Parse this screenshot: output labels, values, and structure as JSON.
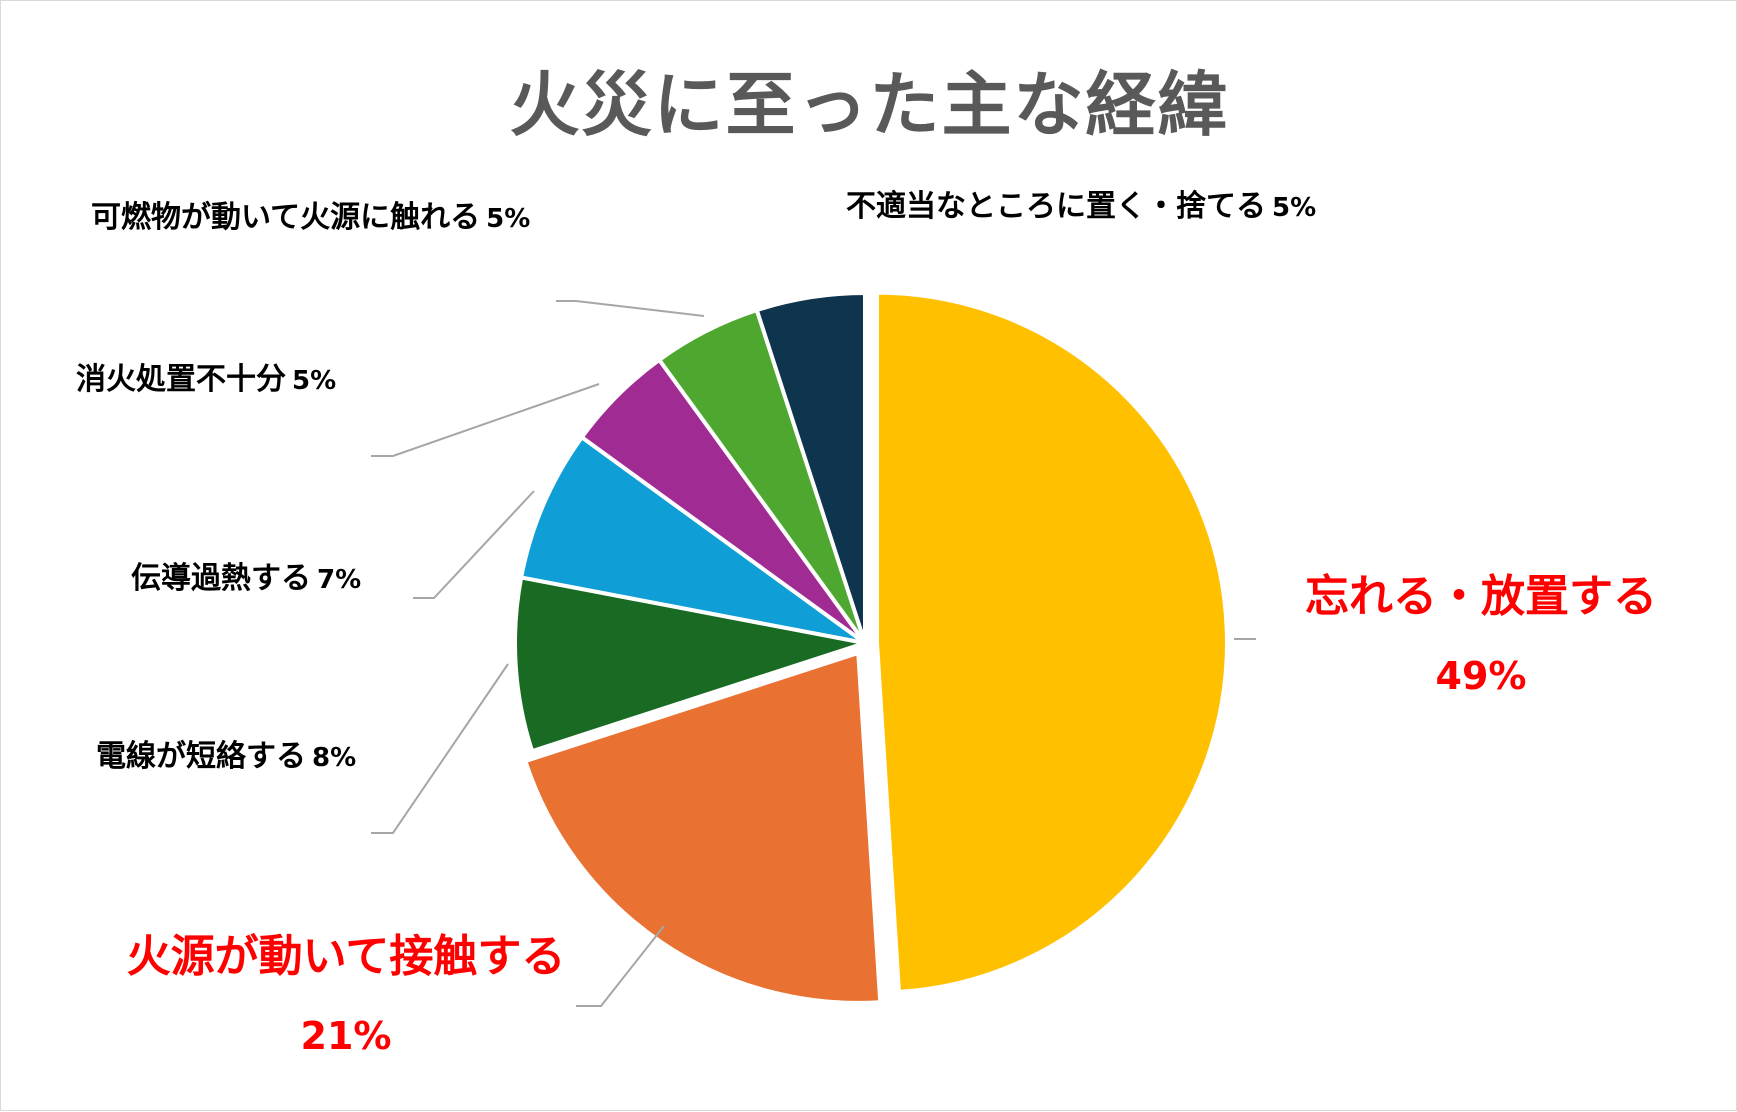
{
  "chart_data": {
    "type": "pie",
    "title": "火災に至った主な経緯",
    "slices": [
      {
        "label": "忘れる・放置する",
        "value": 49,
        "pct": "49%",
        "color": "#FFC000",
        "highlight": true
      },
      {
        "label": "火源が動いて接触する",
        "value": 21,
        "pct": "21%",
        "color": "#E97132",
        "highlight": true
      },
      {
        "label": "電線が短絡する",
        "value": 8,
        "pct": "8%",
        "color": "#196B24",
        "highlight": false
      },
      {
        "label": "伝導過熱する",
        "value": 7,
        "pct": "7%",
        "color": "#0F9ED5",
        "highlight": false
      },
      {
        "label": "消火処置不十分",
        "value": 5,
        "pct": "5%",
        "color": "#A02B93",
        "highlight": false
      },
      {
        "label": "可燃物が動いて火源に触れる",
        "value": 5,
        "pct": "5%",
        "color": "#4EA72E",
        "highlight": false
      },
      {
        "label": "不適当なところに置く・捨てる",
        "value": 5,
        "pct": "5%",
        "color": "#0E344E",
        "highlight": false
      }
    ],
    "highlight_color": "#FF0000",
    "label_color": "#000000",
    "leader_color": "#A6A6A6"
  }
}
